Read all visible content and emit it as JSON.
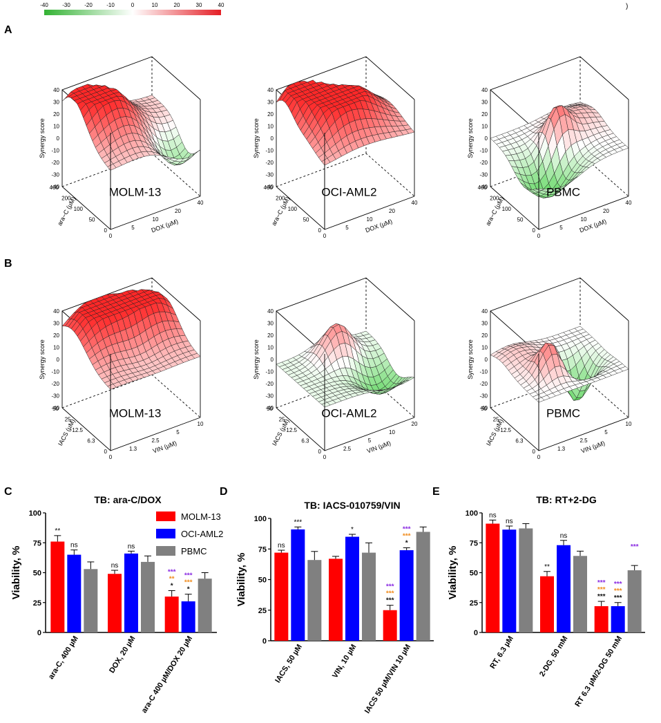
{
  "colorbar": {
    "ticks": [
      "-40",
      "-30",
      "-20",
      "-10",
      "0",
      "10",
      "20",
      "30",
      "40"
    ],
    "low_color": "#33b233",
    "mid_color": "#ffffff",
    "high_color": "#e41f26",
    "corner_mark": ")"
  },
  "panels": {
    "A": "A",
    "B": "B",
    "C": "C",
    "D": "D",
    "E": "E"
  },
  "surfaces": [
    {
      "id": "a1",
      "row": "A",
      "cell": "MOLM-13",
      "zlabel": "Synergy score",
      "ylabel": "ara−C (µM)",
      "xlabel": "DOX (µM)",
      "zticks": [
        "40",
        "30",
        "20",
        "10",
        "0",
        "-10",
        "-20",
        "-30",
        "-40"
      ],
      "yticks": [
        "400",
        "200",
        "100",
        "50",
        "0"
      ],
      "xticks": [
        "0",
        "5",
        "10",
        "20",
        "40"
      ],
      "peaks": [
        {
          "u": 0.15,
          "v": 0.8,
          "h": 36,
          "s": 0.25
        },
        {
          "u": 0.4,
          "v": 0.5,
          "h": 20,
          "s": 0.25
        },
        {
          "u": 0.85,
          "v": 0.25,
          "h": -28,
          "s": 0.2
        }
      ],
      "base": 8
    },
    {
      "id": "a2",
      "row": "A",
      "cell": "OCI-AML2",
      "zlabel": "Synergy score",
      "ylabel": "ara−C (µM)",
      "xlabel": "DOX (µM)",
      "zticks": [
        "40",
        "30",
        "20",
        "10",
        "0",
        "-10",
        "-20",
        "-30",
        "-40"
      ],
      "yticks": [
        "400",
        "200",
        "100",
        "50",
        "0"
      ],
      "xticks": [
        "0",
        "5",
        "10",
        "20",
        "40"
      ],
      "peaks": [
        {
          "u": 0.2,
          "v": 0.85,
          "h": 38,
          "s": 0.2
        },
        {
          "u": 0.6,
          "v": 0.5,
          "h": 28,
          "s": 0.25
        },
        {
          "u": 0.3,
          "v": 0.4,
          "h": 20,
          "s": 0.2
        }
      ],
      "base": 12
    },
    {
      "id": "a3",
      "row": "A",
      "cell": "PBMC",
      "zlabel": "Synergy score",
      "ylabel": "ara−C (µM)",
      "xlabel": "DOX (µM)",
      "zticks": [
        "40",
        "30",
        "20",
        "10",
        "0",
        "-10",
        "-20",
        "-30",
        "-40"
      ],
      "yticks": [
        "400",
        "200",
        "100",
        "50",
        "0"
      ],
      "xticks": [
        "0",
        "5",
        "10",
        "20",
        "40"
      ],
      "peaks": [
        {
          "u": 0.5,
          "v": 0.55,
          "h": 32,
          "s": 0.12
        },
        {
          "u": 0.25,
          "v": 0.3,
          "h": -30,
          "s": 0.22
        },
        {
          "u": 0.8,
          "v": 0.7,
          "h": 12,
          "s": 0.2
        }
      ],
      "base": 0
    },
    {
      "id": "b1",
      "row": "B",
      "cell": "MOLM-13",
      "zlabel": "Synergy score",
      "ylabel": "IACS (µM)",
      "xlabel": "VIN (µM)",
      "zticks": [
        "40",
        "30",
        "20",
        "10",
        "0",
        "-10",
        "-20",
        "-30",
        "-40"
      ],
      "yticks": [
        "50",
        "25",
        "12.5",
        "6.3",
        "0"
      ],
      "xticks": [
        "0",
        "1.3",
        "2.5",
        "5",
        "10"
      ],
      "peaks": [
        {
          "u": 0.3,
          "v": 0.8,
          "h": 36,
          "s": 0.3
        },
        {
          "u": 0.8,
          "v": 0.7,
          "h": 30,
          "s": 0.25
        },
        {
          "u": 0.5,
          "v": 0.4,
          "h": -8,
          "s": 0.2
        }
      ],
      "base": 10
    },
    {
      "id": "b2",
      "row": "B",
      "cell": "OCI-AML2",
      "zlabel": "Synergy score",
      "ylabel": "IACS (µM)",
      "xlabel": "VIN (µM)",
      "zticks": [
        "40",
        "30",
        "20",
        "10",
        "0",
        "-10",
        "-20",
        "-30",
        "-40"
      ],
      "yticks": [
        "50",
        "25",
        "12.5",
        "6.3",
        "0"
      ],
      "xticks": [
        "0",
        "2.5",
        "5",
        "10",
        "20"
      ],
      "peaks": [
        {
          "u": 0.55,
          "v": 0.75,
          "h": 28,
          "s": 0.15
        },
        {
          "u": 0.8,
          "v": 0.35,
          "h": -22,
          "s": 0.2
        }
      ],
      "base": -4
    },
    {
      "id": "b3",
      "row": "B",
      "cell": "PBMC",
      "zlabel": "Synergy score",
      "ylabel": "IACS (µM)",
      "xlabel": "VIN (µM)",
      "zticks": [
        "40",
        "30",
        "20",
        "10",
        "0",
        "-10",
        "-20",
        "-30",
        "-40"
      ],
      "yticks": [
        "50",
        "25",
        "12.5",
        "6.3",
        "0"
      ],
      "xticks": [
        "0",
        "1.3",
        "2.5",
        "5",
        "10"
      ],
      "peaks": [
        {
          "u": 0.35,
          "v": 0.4,
          "h": 28,
          "s": 0.12
        },
        {
          "u": 0.65,
          "v": 0.45,
          "h": -34,
          "s": 0.14
        },
        {
          "u": 0.2,
          "v": 0.8,
          "h": 10,
          "s": 0.2
        }
      ],
      "base": 0
    }
  ],
  "legend": [
    {
      "name": "MOLM-13",
      "color": "#ff0000"
    },
    {
      "name": "OCI-AML2",
      "color": "#0000ff"
    },
    {
      "name": "PBMC",
      "color": "#808080"
    }
  ],
  "chart_data": [
    {
      "type": "bar",
      "panel": "C",
      "title": "TB: ara-C/DOX",
      "ylabel": "Viability, %",
      "ylim": [
        0,
        100
      ],
      "yticks": [
        "0",
        "25",
        "50",
        "75",
        "100"
      ],
      "categories": [
        "ara-C, 400 µM",
        "DOX, 20 µM",
        "ara-C 400 µM/DOX 20 µM"
      ],
      "series": [
        {
          "name": "MOLM-13",
          "values": [
            76,
            49,
            30
          ],
          "errors": [
            5,
            3,
            5
          ],
          "marks": [
            "**",
            "ns",
            [
              "*",
              "**",
              "***"
            ]
          ]
        },
        {
          "name": "OCI-AML2",
          "values": [
            65,
            66,
            26
          ],
          "errors": [
            4,
            2,
            6
          ],
          "marks": [
            "ns",
            "ns",
            [
              "*",
              "***",
              "***"
            ]
          ]
        },
        {
          "name": "PBMC",
          "values": [
            53,
            59,
            45
          ],
          "errors": [
            6,
            5,
            5
          ],
          "marks": [
            "",
            "",
            ""
          ]
        }
      ]
    },
    {
      "type": "bar",
      "panel": "D",
      "title": "TB: IACS-010759/VIN",
      "ylabel": "Viability, %",
      "ylim": [
        0,
        100
      ],
      "yticks": [
        "0",
        "25",
        "50",
        "75",
        "100"
      ],
      "categories": [
        "IACS, 50 µM",
        "VIN, 10 µM",
        "IACS 50 µM/VIN 10 µM"
      ],
      "series": [
        {
          "name": "MOLM-13",
          "values": [
            72,
            67,
            25
          ],
          "errors": [
            2,
            2,
            4
          ],
          "marks": [
            "ns",
            "",
            [
              "***",
              "***",
              "***"
            ]
          ]
        },
        {
          "name": "OCI-AML2",
          "values": [
            91,
            85,
            74
          ],
          "errors": [
            2,
            2,
            2
          ],
          "marks": [
            "***",
            "*",
            [
              "*",
              "***",
              "***"
            ]
          ]
        },
        {
          "name": "PBMC",
          "values": [
            66,
            72,
            89
          ],
          "errors": [
            7,
            8,
            4
          ],
          "marks": [
            "",
            "",
            ""
          ]
        }
      ]
    },
    {
      "type": "bar",
      "panel": "E",
      "title": "TB: RT+2-DG",
      "ylabel": "Viability, %",
      "ylim": [
        0,
        100
      ],
      "yticks": [
        "0",
        "25",
        "50",
        "75",
        "100"
      ],
      "categories": [
        "RT, 6.3 µM",
        "2-DG, 50 mM",
        "RT 6.3 µM/2-DG 50 mM"
      ],
      "series": [
        {
          "name": "MOLM-13",
          "values": [
            91,
            47,
            22
          ],
          "errors": [
            3,
            4,
            4
          ],
          "marks": [
            "ns",
            "**",
            [
              "***",
              "***",
              "***"
            ]
          ]
        },
        {
          "name": "OCI-AML2",
          "values": [
            86,
            73,
            22
          ],
          "errors": [
            3,
            4,
            3
          ],
          "marks": [
            "ns",
            "ns",
            [
              "***",
              "***",
              "***"
            ]
          ]
        },
        {
          "name": "PBMC",
          "values": [
            87,
            64,
            52
          ],
          "errors": [
            4,
            4,
            4
          ],
          "marks": [
            "",
            "",
            [
              "",
              "",
              "***"
            ]
          ]
        }
      ]
    }
  ],
  "sig_colors": [
    "#111111",
    "#f08c1e",
    "#8a2be2"
  ]
}
